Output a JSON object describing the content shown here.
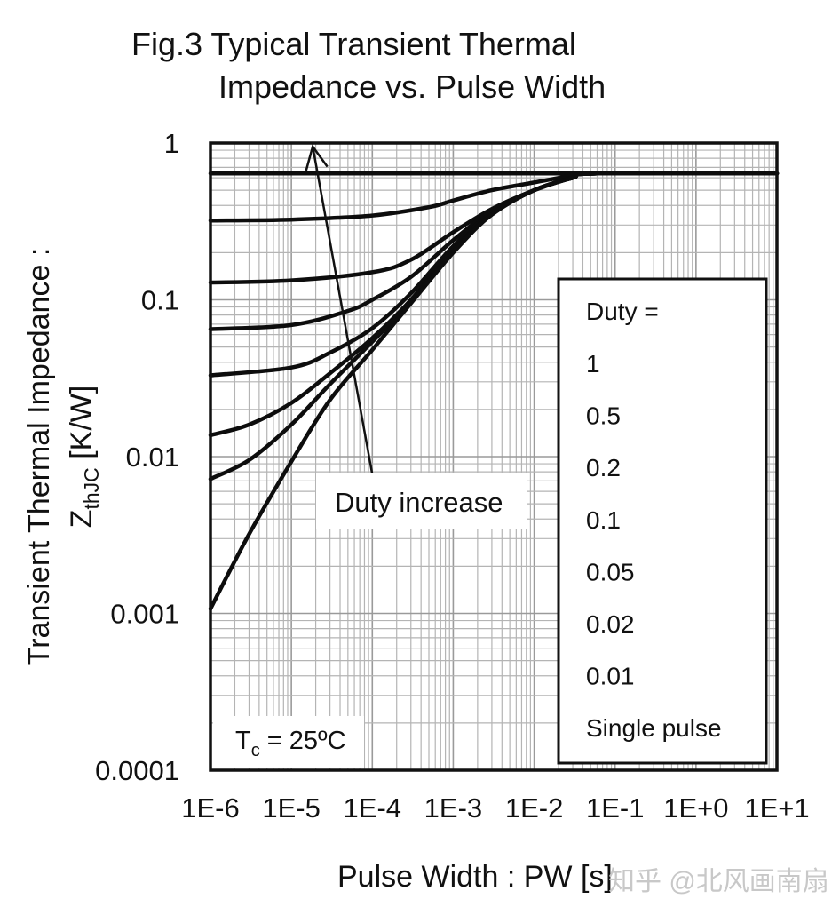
{
  "chart_data": {
    "type": "line",
    "title": [
      "Fig.3 Typical Transient Thermal",
      "Impedance vs. Pulse Width"
    ],
    "xlabel": "Pulse Width : PW [s]",
    "ylabel": {
      "line1": "Transient Thermal Impedance :",
      "line2_main": "Z",
      "line2_sub": "thJC",
      "line2_rest": " [K/W]"
    },
    "xscale": "log",
    "yscale": "log",
    "xlim": [
      1e-06,
      10
    ],
    "ylim": [
      0.0001,
      1
    ],
    "x_tick_labels": [
      "1E-6",
      "1E-5",
      "1E-4",
      "1E-3",
      "1E-2",
      "1E-1",
      "1E+0",
      "1E+1"
    ],
    "x_tick_values": [
      1e-06,
      1e-05,
      0.0001,
      0.001,
      0.01,
      0.1,
      1,
      10
    ],
    "y_tick_labels": [
      "1",
      "0.1",
      "0.01",
      "0.001",
      "0.0001"
    ],
    "y_tick_values": [
      1,
      0.1,
      0.01,
      0.001,
      0.0001
    ],
    "grid": true,
    "legend": {
      "placement": "right",
      "header": "Duty =",
      "entries": [
        "1",
        "0.5",
        "0.2",
        "0.1",
        "0.05",
        "0.02",
        "0.01",
        "Single pulse"
      ]
    },
    "annotations": {
      "arrow_label": "Duty increase",
      "arrow_from": {
        "x": 0.0001,
        "y": 0.01
      },
      "arrow_to": {
        "x": 1.5e-05,
        "y": 1
      },
      "condition_main": "T",
      "condition_sub": "c",
      "condition_rest": " = 25ºC"
    },
    "series": [
      {
        "name": "1",
        "points": [
          [
            1e-06,
            0.64
          ],
          [
            10,
            0.64
          ]
        ]
      },
      {
        "name": "0.5",
        "points": [
          [
            1e-06,
            0.32
          ],
          [
            1e-05,
            0.325
          ],
          [
            0.0001,
            0.345
          ],
          [
            0.0005,
            0.39
          ],
          [
            0.001,
            0.43
          ],
          [
            0.003,
            0.5
          ],
          [
            0.01,
            0.56
          ],
          [
            0.03,
            0.62
          ],
          [
            0.06,
            0.64
          ],
          [
            10,
            0.64
          ]
        ]
      },
      {
        "name": "0.2",
        "points": [
          [
            1e-06,
            0.129
          ],
          [
            1e-05,
            0.133
          ],
          [
            0.0001,
            0.15
          ],
          [
            0.0003,
            0.18
          ],
          [
            0.001,
            0.27
          ],
          [
            0.003,
            0.38
          ],
          [
            0.01,
            0.5
          ],
          [
            0.03,
            0.6
          ],
          [
            0.06,
            0.64
          ],
          [
            10,
            0.64
          ]
        ]
      },
      {
        "name": "0.1",
        "points": [
          [
            1e-06,
            0.065
          ],
          [
            1e-05,
            0.069
          ],
          [
            5e-05,
            0.085
          ],
          [
            0.0001,
            0.1
          ],
          [
            0.0003,
            0.14
          ],
          [
            0.001,
            0.24
          ],
          [
            0.003,
            0.37
          ],
          [
            0.01,
            0.5
          ],
          [
            0.03,
            0.6
          ],
          [
            0.06,
            0.64
          ],
          [
            10,
            0.64
          ]
        ]
      },
      {
        "name": "0.05",
        "points": [
          [
            1e-06,
            0.033
          ],
          [
            1e-05,
            0.037
          ],
          [
            3e-05,
            0.046
          ],
          [
            0.0001,
            0.066
          ],
          [
            0.0003,
            0.11
          ],
          [
            0.001,
            0.22
          ],
          [
            0.003,
            0.36
          ],
          [
            0.01,
            0.5
          ],
          [
            0.03,
            0.6
          ],
          [
            0.06,
            0.64
          ],
          [
            10,
            0.64
          ]
        ]
      },
      {
        "name": "0.02",
        "points": [
          [
            1e-06,
            0.0137
          ],
          [
            3e-06,
            0.016
          ],
          [
            1e-05,
            0.022
          ],
          [
            3e-05,
            0.034
          ],
          [
            0.0001,
            0.057
          ],
          [
            0.0003,
            0.1
          ],
          [
            0.001,
            0.21
          ],
          [
            0.003,
            0.35
          ],
          [
            0.01,
            0.5
          ],
          [
            0.03,
            0.6
          ],
          [
            0.06,
            0.64
          ],
          [
            10,
            0.64
          ]
        ]
      },
      {
        "name": "0.01",
        "points": [
          [
            1e-06,
            0.0072
          ],
          [
            3e-06,
            0.0095
          ],
          [
            1e-05,
            0.016
          ],
          [
            3e-05,
            0.029
          ],
          [
            0.0001,
            0.054
          ],
          [
            0.0003,
            0.098
          ],
          [
            0.001,
            0.205
          ],
          [
            0.003,
            0.35
          ],
          [
            0.01,
            0.5
          ],
          [
            0.03,
            0.6
          ],
          [
            0.06,
            0.64
          ],
          [
            10,
            0.64
          ]
        ]
      },
      {
        "name": "Single pulse",
        "points": [
          [
            1e-06,
            0.00107
          ],
          [
            3e-06,
            0.0032
          ],
          [
            1e-05,
            0.0093
          ],
          [
            3e-05,
            0.023
          ],
          [
            0.0001,
            0.048
          ],
          [
            0.0003,
            0.095
          ],
          [
            0.001,
            0.2
          ],
          [
            0.003,
            0.35
          ],
          [
            0.01,
            0.5
          ],
          [
            0.03,
            0.6
          ],
          [
            0.06,
            0.64
          ],
          [
            10,
            0.64
          ]
        ]
      }
    ]
  },
  "watermark": "知乎 @北风画南扇"
}
